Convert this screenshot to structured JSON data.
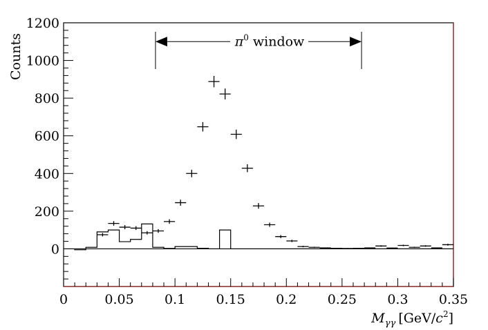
{
  "chart_data": {
    "type": "scatter",
    "xlabel": "M_γγ [GeV/c²]",
    "xlabel_parts": {
      "main": "M",
      "sub": "γγ",
      "unit_pre": "[GeV/",
      "unit_var": "c",
      "unit_sup": "2",
      "unit_post": "]"
    },
    "ylabel": "Counts",
    "xlim": [
      0,
      0.35
    ],
    "ylim": [
      -200,
      1200
    ],
    "x_ticks": [
      0,
      0.05,
      0.1,
      0.15,
      0.2,
      0.25,
      0.3,
      0.35
    ],
    "x_tick_labels": [
      "0",
      "0.05",
      "0.1",
      "0.15",
      "0.2",
      "0.25",
      "0.3",
      "0.35"
    ],
    "y_ticks": [
      0,
      200,
      400,
      600,
      800,
      1000,
      1200
    ],
    "y_tick_labels": [
      "0",
      "200",
      "400",
      "600",
      "800",
      "1000",
      "1200"
    ],
    "annotation": {
      "text_symbol": "π",
      "text_sup": "0",
      "text_rest": " window",
      "x_range": [
        0.0825,
        0.2675
      ],
      "y": 1100
    },
    "series": [
      {
        "style": "crosses",
        "x": [
          0.035,
          0.045,
          0.055,
          0.065,
          0.075,
          0.085,
          0.095,
          0.105,
          0.115,
          0.125,
          0.135,
          0.145,
          0.155,
          0.165,
          0.175,
          0.185,
          0.195,
          0.205,
          0.215,
          0.225,
          0.235,
          0.245,
          0.255,
          0.265,
          0.275,
          0.285,
          0.295,
          0.305,
          0.315,
          0.325,
          0.335,
          0.345
        ],
        "y": [
          75,
          135,
          115,
          110,
          85,
          95,
          145,
          245,
          400,
          648,
          888,
          822,
          608,
          428,
          228,
          128,
          65,
          42,
          12,
          8,
          5,
          3,
          2,
          3,
          5,
          15,
          4,
          18,
          8,
          15,
          5,
          22
        ],
        "yerr": [
          9,
          12,
          11,
          10,
          9,
          10,
          12,
          16,
          20,
          25,
          30,
          29,
          25,
          21,
          15,
          11,
          8,
          6,
          4,
          3,
          2,
          2,
          2,
          2,
          2,
          4,
          2,
          4,
          3,
          4,
          2,
          5
        ]
      },
      {
        "style": "histogram",
        "edges": [
          0.01,
          0.02,
          0.03,
          0.04,
          0.05,
          0.06,
          0.07,
          0.08,
          0.09,
          0.1,
          0.11,
          0.12,
          0.13,
          0.14,
          0.15,
          0.16,
          0.17,
          0.18,
          0.19,
          0.2,
          0.21,
          0.22,
          0.23,
          0.24,
          0.25,
          0.26,
          0.27,
          0.28,
          0.29,
          0.3,
          0.31,
          0.32,
          0.33,
          0.34,
          0.35
        ],
        "values": [
          -5,
          8,
          90,
          100,
          38,
          50,
          132,
          8,
          2,
          12,
          12,
          3,
          0,
          100,
          0,
          0,
          0,
          0,
          0,
          0,
          0,
          0,
          0,
          0,
          0,
          0,
          0,
          0,
          0,
          0,
          0,
          0,
          0,
          0
        ]
      }
    ]
  }
}
